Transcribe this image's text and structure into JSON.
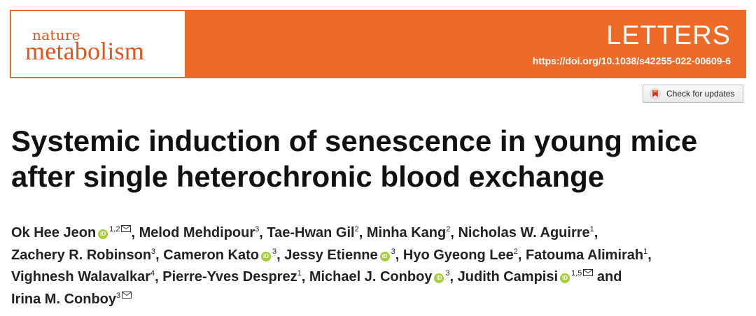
{
  "journal": {
    "logo_line1": "nature",
    "logo_line2": "metabolism",
    "section": "LETTERS",
    "doi": "https://doi.org/10.1038/s42255-022-00609-6",
    "accent_color": "#ee6a28"
  },
  "check_updates": {
    "label": "Check for updates",
    "icon": "crossmark-icon"
  },
  "title": {
    "line1": "Systemic induction of senescence in young mice",
    "line2": "after single heterochronic blood exchange"
  },
  "authors": {
    "a1": {
      "name": "Ok Hee Jeon",
      "sup": "1,2"
    },
    "a2": {
      "name": "Melod Mehdipour",
      "sup": "3"
    },
    "a3": {
      "name": "Tae-Hwan Gil",
      "sup": "2"
    },
    "a4": {
      "name": "Minha Kang",
      "sup": "2"
    },
    "a5": {
      "name": "Nicholas W. Aguirre",
      "sup": "1"
    },
    "a6": {
      "name": "Zachery R. Robinson",
      "sup": "3"
    },
    "a7": {
      "name": "Cameron Kato",
      "sup": "3"
    },
    "a8": {
      "name": "Jessy Etienne",
      "sup": "3"
    },
    "a9": {
      "name": "Hyo Gyeong Lee",
      "sup": "2"
    },
    "a10": {
      "name": "Fatouma Alimirah",
      "sup": "1"
    },
    "a11": {
      "name": "Vighnesh Walavalkar",
      "sup": "4"
    },
    "a12": {
      "name": "Pierre-Yves Desprez",
      "sup": "1"
    },
    "a13": {
      "name": "Michael J. Conboy",
      "sup": "3"
    },
    "a14": {
      "name": "Judith Campisi",
      "sup": "1,5"
    },
    "a15": {
      "name": "Irina M. Conboy",
      "sup": "3"
    },
    "sep": ", ",
    "and": " and",
    "orcid_label": "iD"
  }
}
